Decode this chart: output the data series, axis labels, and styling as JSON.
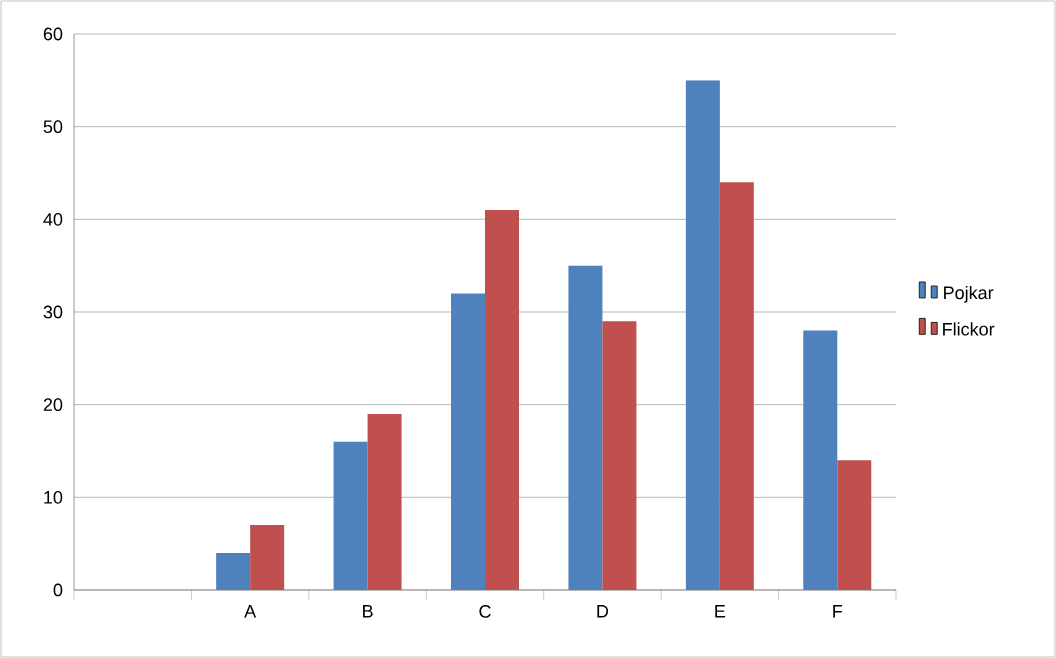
{
  "chart_data": {
    "type": "bar",
    "categories": [
      null,
      "A",
      "B",
      "C",
      "D",
      "E",
      "F"
    ],
    "series": [
      {
        "name": "Pojkar",
        "color": "#4f81bd",
        "values": [
          null,
          4,
          16,
          32,
          35,
          55,
          28
        ]
      },
      {
        "name": "Flickor",
        "color": "#c0504d",
        "values": [
          null,
          7,
          19,
          41,
          29,
          44,
          14
        ]
      }
    ],
    "ylim": [
      0,
      60
    ],
    "yticks": [
      0,
      10,
      20,
      30,
      40,
      50,
      60
    ],
    "grid": "y",
    "legend": "right"
  }
}
